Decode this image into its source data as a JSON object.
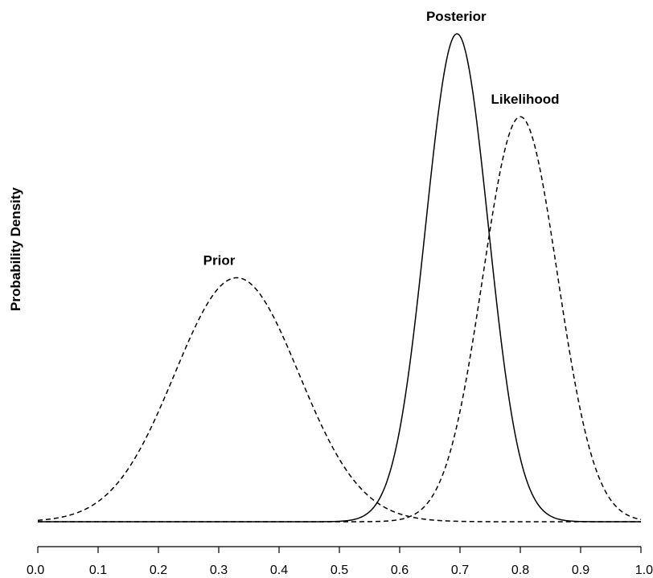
{
  "chart_data": {
    "type": "line",
    "title": "",
    "xlabel": "",
    "ylabel": "Probability Density",
    "xlim": [
      0,
      1
    ],
    "x_ticks": [
      "0.0",
      "0.1",
      "0.2",
      "0.3",
      "0.4",
      "0.5",
      "0.6",
      "0.7",
      "0.8",
      "0.9",
      "1.0"
    ],
    "y_ticks": [],
    "grid": false,
    "legend": "none",
    "series": [
      {
        "name": "Prior",
        "line_style": "dashed",
        "color": "#000000",
        "peak_x": 0.33,
        "relative_peak_height": 0.5,
        "spread_sd": 0.103
      },
      {
        "name": "Likelihood",
        "line_style": "dashed",
        "color": "#000000",
        "peak_x": 0.8,
        "relative_peak_height": 0.83,
        "spread_sd": 0.062
      },
      {
        "name": "Posterior",
        "line_style": "solid",
        "color": "#000000",
        "peak_x": 0.695,
        "relative_peak_height": 1.0,
        "spread_sd": 0.052
      }
    ]
  }
}
